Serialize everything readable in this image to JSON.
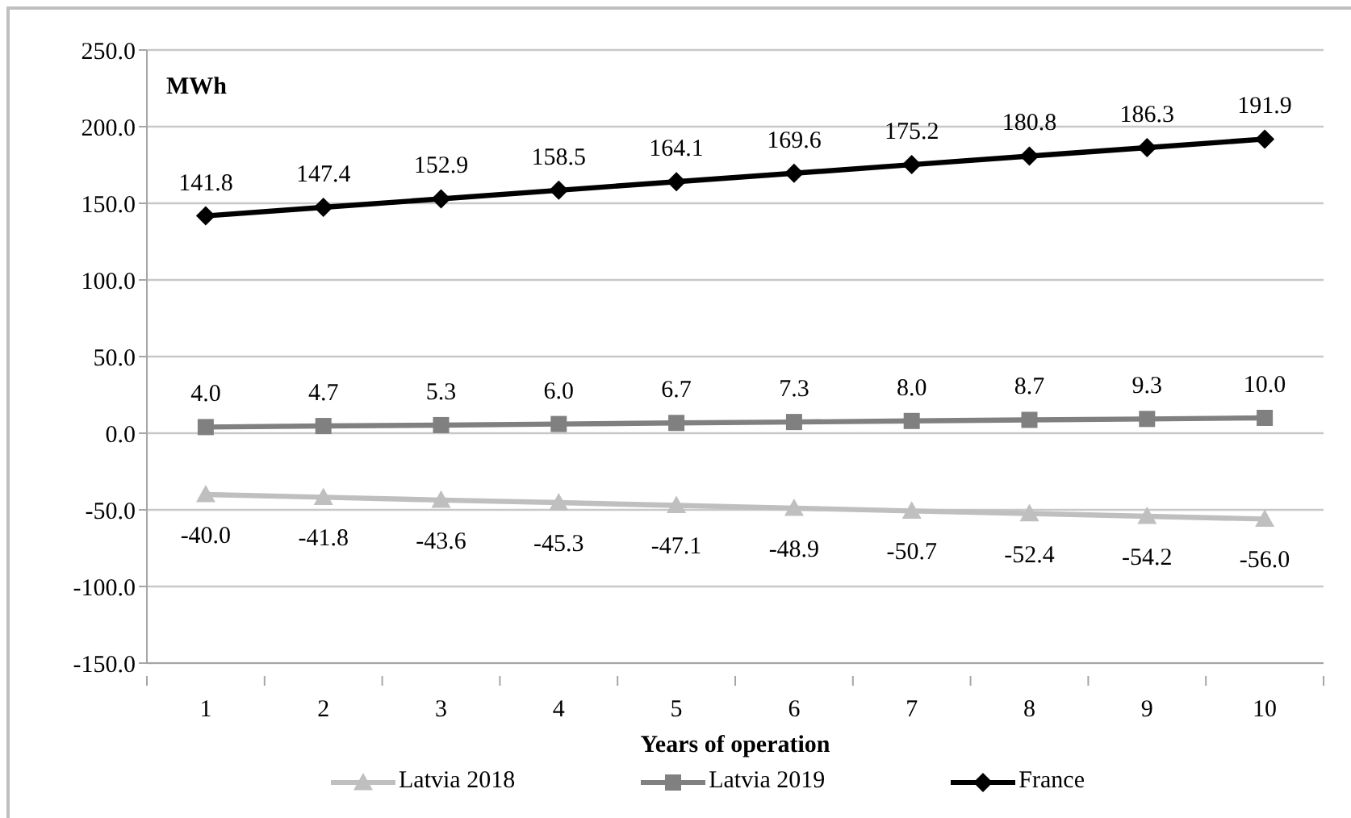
{
  "chart_data": {
    "type": "line",
    "categories": [
      "1",
      "2",
      "3",
      "4",
      "5",
      "6",
      "7",
      "8",
      "9",
      "10"
    ],
    "xlabel": "Years of operation",
    "ylabel": "MWh",
    "ylim": [
      -150,
      250
    ],
    "yticks": [
      {
        "value": -150,
        "label": "-150.0"
      },
      {
        "value": -100,
        "label": "-100.0"
      },
      {
        "value": -50,
        "label": "-50.0"
      },
      {
        "value": 0,
        "label": "0.0"
      },
      {
        "value": 50,
        "label": "50.0"
      },
      {
        "value": 100,
        "label": "100.0"
      },
      {
        "value": 150,
        "label": "150.0"
      },
      {
        "value": 200,
        "label": "200.0"
      },
      {
        "value": 250,
        "label": "250.0"
      }
    ],
    "grid": "y",
    "legend": "bottom",
    "series": [
      {
        "name": "Latvia 2018",
        "color": "#bfbfbf",
        "marker": "triangle",
        "values": [
          -40.0,
          -41.8,
          -43.6,
          -45.3,
          -47.1,
          -48.9,
          -50.7,
          -52.4,
          -54.2,
          -56.0
        ],
        "value_labels": [
          "-40.0",
          "-41.8",
          "-43.6",
          "-45.3",
          "-47.1",
          "-48.9",
          "-50.7",
          "-52.4",
          "-54.2",
          "-56.0"
        ]
      },
      {
        "name": "Latvia 2019",
        "color": "#808080",
        "marker": "square",
        "values": [
          4.0,
          4.7,
          5.3,
          6.0,
          6.7,
          7.3,
          8.0,
          8.7,
          9.3,
          10.0
        ],
        "value_labels": [
          "4.0",
          "4.7",
          "5.3",
          "6.0",
          "6.7",
          "7.3",
          "8.0",
          "8.7",
          "9.3",
          "10.0"
        ]
      },
      {
        "name": "France",
        "color": "#000000",
        "marker": "diamond",
        "values": [
          141.8,
          147.4,
          152.9,
          158.5,
          164.1,
          169.6,
          175.2,
          180.8,
          186.3,
          191.9
        ],
        "value_labels": [
          "141.8",
          "147.4",
          "152.9",
          "158.5",
          "164.1",
          "169.6",
          "175.2",
          "180.8",
          "186.3",
          "191.9"
        ]
      }
    ]
  }
}
